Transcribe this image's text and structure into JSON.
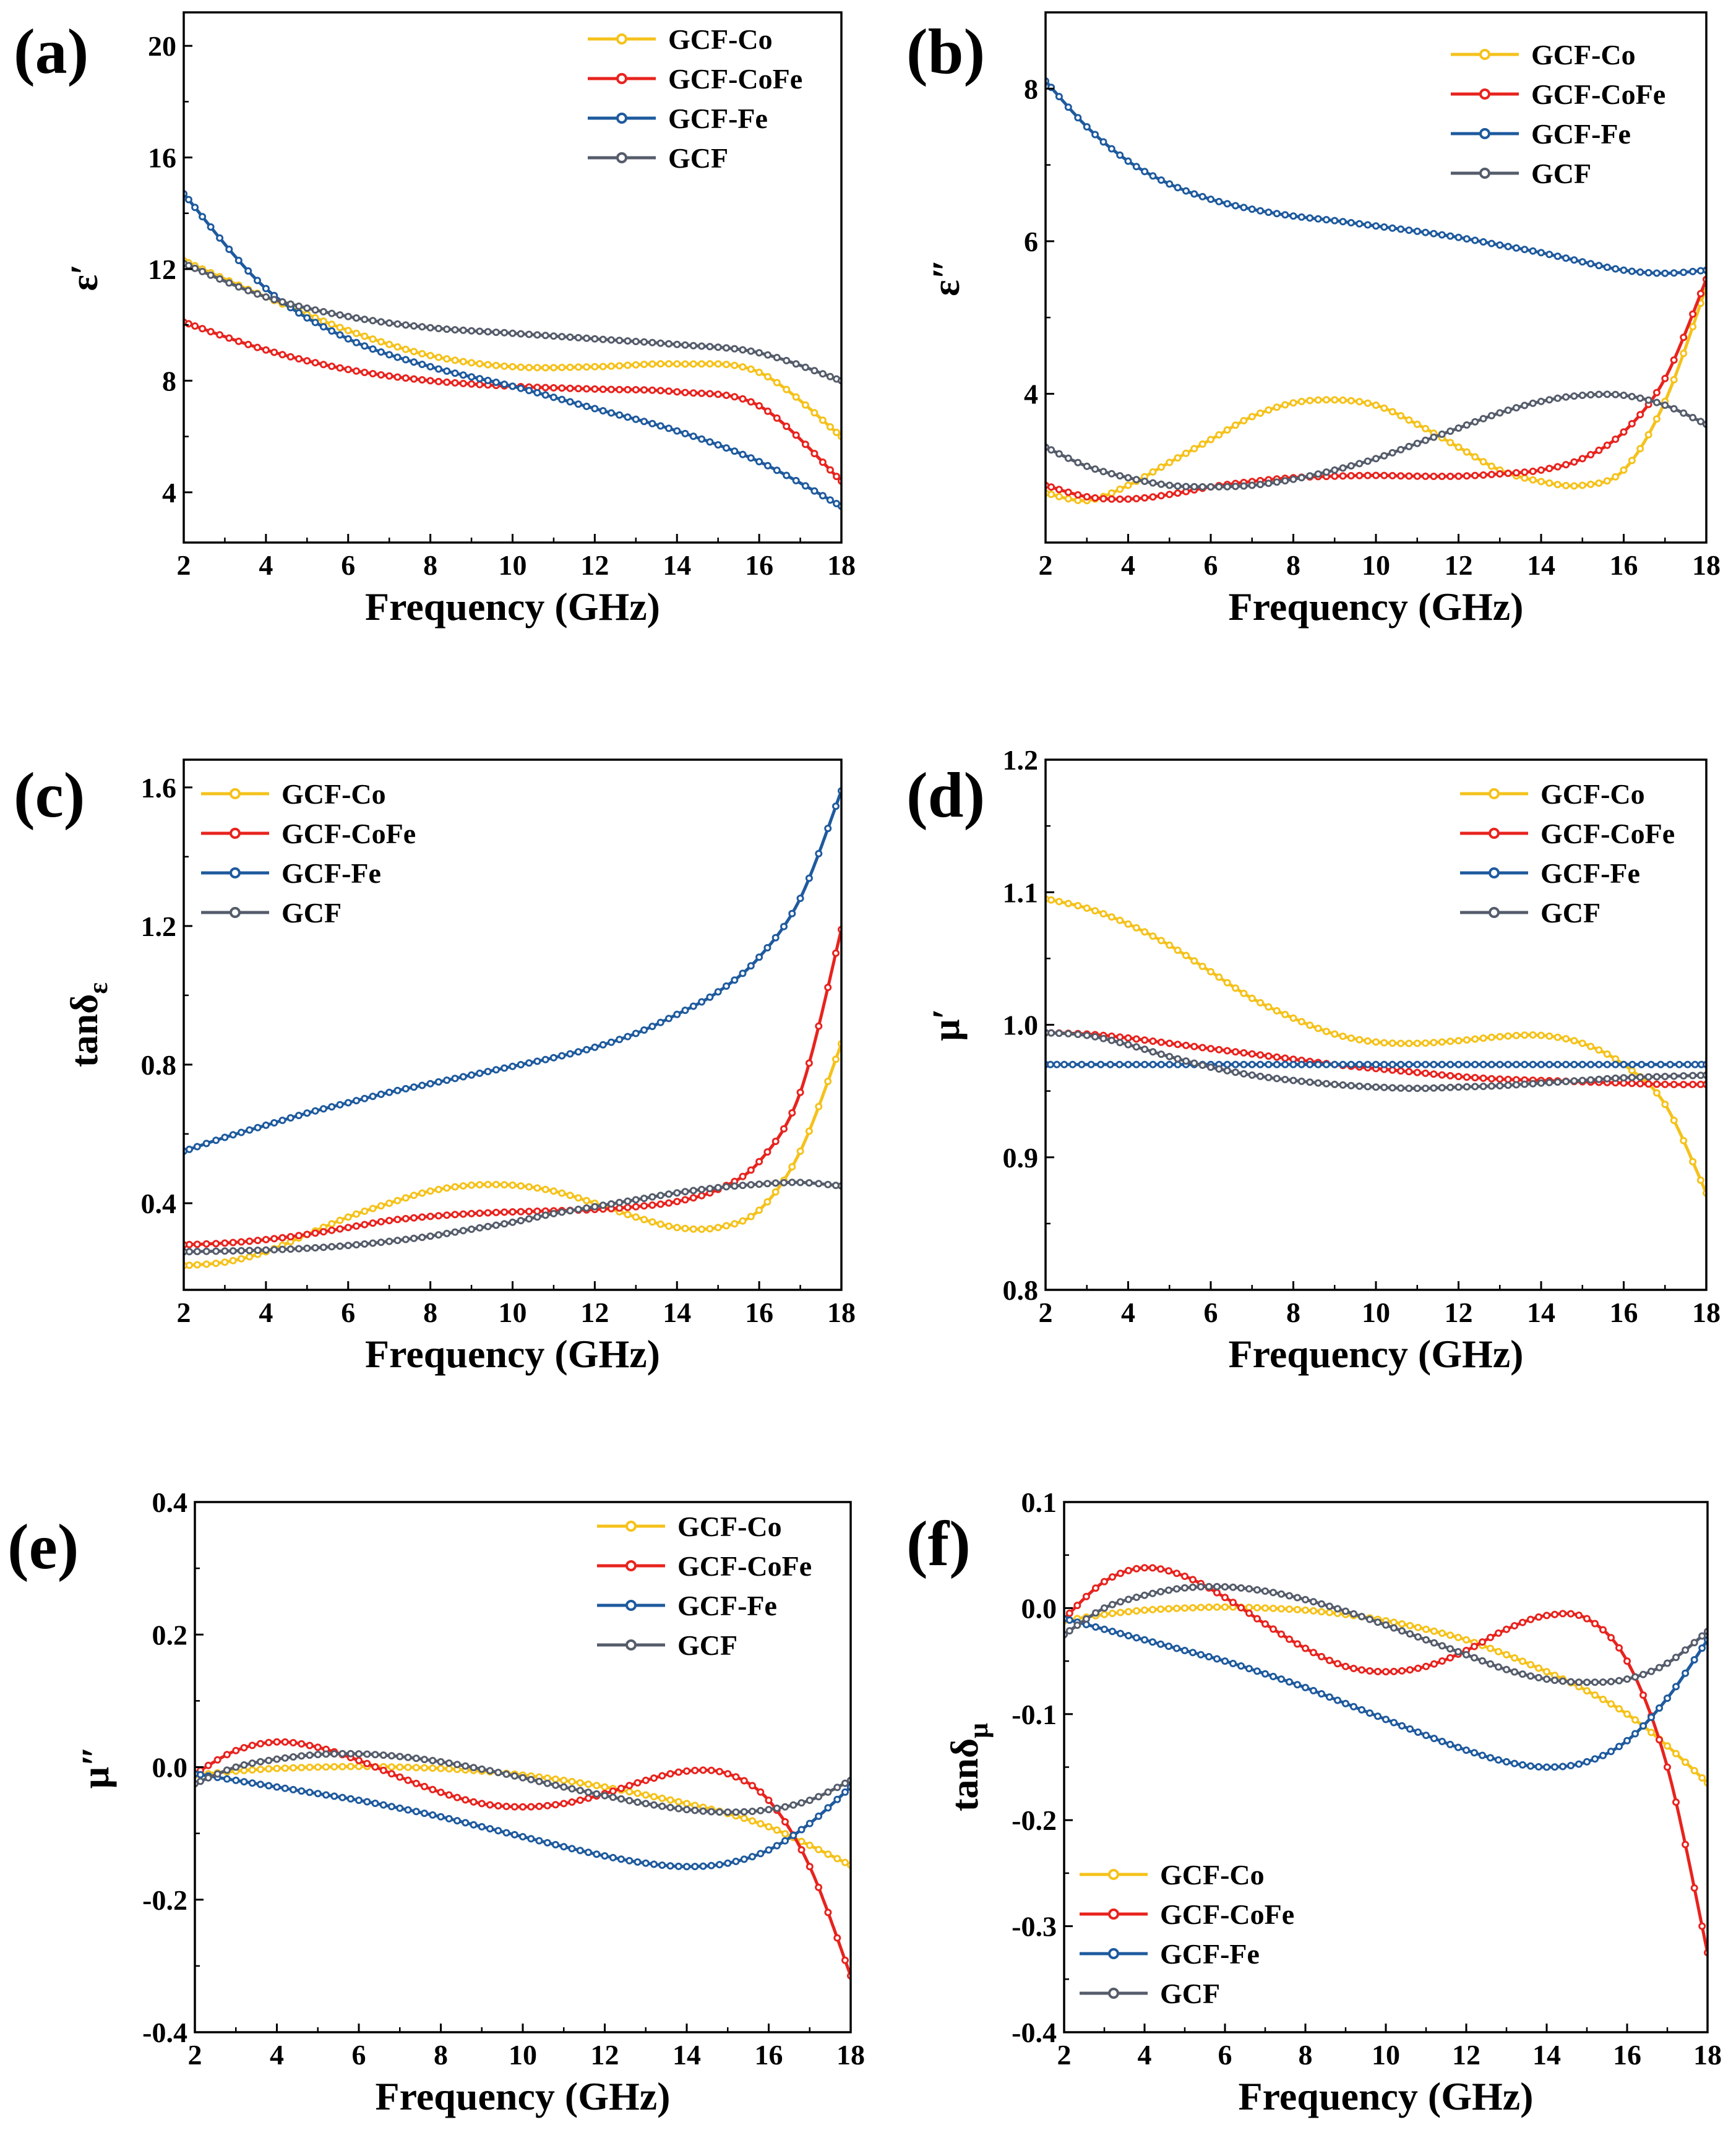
{
  "colors": {
    "GCF-Co": "#F5C21B",
    "GCF-CoFe": "#E8231E",
    "GCF-Fe": "#1E5A9E",
    "GCF": "#555C6B"
  },
  "chart_data": [
    {
      "panel": "(a)",
      "type": "line",
      "ylabel_main": "ε",
      "ylabel_sub": "",
      "ylabel_prime": "′",
      "xlabel": "Frequency (GHz)",
      "xlim": [
        2,
        18
      ],
      "ylim": [
        2.2,
        21.2
      ],
      "xticks": [
        2,
        4,
        6,
        8,
        10,
        12,
        14,
        16,
        18
      ],
      "yticks": [
        4,
        8,
        12,
        16,
        20
      ],
      "yticklabels": [
        "4",
        "8",
        "12",
        "16",
        "20"
      ],
      "legend_position": "top-right",
      "series": [
        {
          "name": "GCF-Co",
          "x": [
            2,
            4,
            6,
            8,
            10,
            12,
            14,
            16,
            18
          ],
          "y": [
            12.3,
            11.0,
            9.8,
            8.9,
            8.5,
            8.5,
            8.6,
            8.3,
            6.0
          ]
        },
        {
          "name": "GCF-CoFe",
          "x": [
            2,
            4,
            6,
            8,
            10,
            12,
            14,
            16,
            18
          ],
          "y": [
            10.1,
            9.1,
            8.4,
            8.0,
            7.8,
            7.7,
            7.6,
            7.1,
            4.4
          ]
        },
        {
          "name": "GCF-Fe",
          "x": [
            2,
            4,
            6,
            8,
            10,
            12,
            14,
            16,
            18
          ],
          "y": [
            14.7,
            11.3,
            9.5,
            8.5,
            7.8,
            7.0,
            6.2,
            5.1,
            3.5
          ]
        },
        {
          "name": "GCF",
          "x": [
            2,
            4,
            6,
            8,
            10,
            12,
            14,
            16,
            18
          ],
          "y": [
            12.2,
            11.0,
            10.3,
            9.9,
            9.7,
            9.5,
            9.3,
            9.0,
            8.0
          ]
        }
      ]
    },
    {
      "panel": "(b)",
      "type": "line",
      "ylabel_main": "ε",
      "ylabel_sub": "",
      "ylabel_prime": "″",
      "xlabel": "Frequency (GHz)",
      "xlim": [
        2,
        18
      ],
      "ylim": [
        2.05,
        9.0
      ],
      "xticks": [
        2,
        4,
        6,
        8,
        10,
        12,
        14,
        16,
        18
      ],
      "yticks": [
        4,
        6,
        8
      ],
      "yticklabels": [
        "4",
        "6",
        "8"
      ],
      "legend_position": "top-right",
      "series": [
        {
          "name": "GCF-Co",
          "x": [
            2,
            3,
            4,
            5,
            6,
            7,
            8,
            9,
            10,
            11,
            12,
            13,
            14,
            15,
            16,
            17,
            18
          ],
          "y": [
            2.7,
            2.6,
            2.8,
            3.1,
            3.4,
            3.7,
            3.88,
            3.92,
            3.85,
            3.6,
            3.3,
            3.0,
            2.85,
            2.8,
            3.0,
            3.9,
            5.4
          ]
        },
        {
          "name": "GCF-CoFe",
          "x": [
            2,
            3,
            4,
            5,
            6,
            7,
            8,
            9,
            10,
            11,
            12,
            13,
            14,
            15,
            16,
            17,
            18
          ],
          "y": [
            2.8,
            2.65,
            2.62,
            2.68,
            2.78,
            2.85,
            2.9,
            2.92,
            2.93,
            2.92,
            2.92,
            2.95,
            3.0,
            3.15,
            3.5,
            4.2,
            5.5
          ]
        },
        {
          "name": "GCF-Fe",
          "x": [
            2,
            3,
            4,
            5,
            6,
            7,
            8,
            9,
            10,
            11,
            12,
            13,
            14,
            15,
            16,
            17,
            18
          ],
          "y": [
            8.1,
            7.5,
            7.05,
            6.75,
            6.55,
            6.42,
            6.33,
            6.27,
            6.2,
            6.13,
            6.05,
            5.95,
            5.85,
            5.73,
            5.62,
            5.58,
            5.62
          ]
        },
        {
          "name": "GCF",
          "x": [
            2,
            3,
            4,
            5,
            6,
            7,
            8,
            9,
            10,
            11,
            12,
            13,
            14,
            15,
            16,
            17,
            18
          ],
          "y": [
            3.3,
            3.05,
            2.9,
            2.8,
            2.78,
            2.8,
            2.88,
            3.0,
            3.15,
            3.35,
            3.55,
            3.75,
            3.9,
            3.98,
            3.98,
            3.85,
            3.6
          ]
        }
      ]
    },
    {
      "panel": "(c)",
      "type": "line",
      "ylabel_main": "tanδ",
      "ylabel_sub": "ε",
      "ylabel_prime": "",
      "xlabel": "Frequency (GHz)",
      "xlim": [
        2,
        18
      ],
      "ylim": [
        0.15,
        1.68
      ],
      "xticks": [
        2,
        4,
        6,
        8,
        10,
        12,
        14,
        16,
        18
      ],
      "yticks": [
        0.4,
        0.8,
        1.2,
        1.6
      ],
      "yticklabels": [
        "0.4",
        "0.8",
        "1.2",
        "1.6"
      ],
      "legend_position": "top-left",
      "series": [
        {
          "name": "GCF-Co",
          "x": [
            2,
            3,
            4,
            5,
            6,
            7,
            8,
            9,
            10,
            11,
            12,
            13,
            14,
            15,
            16,
            17,
            18
          ],
          "y": [
            0.22,
            0.23,
            0.26,
            0.31,
            0.36,
            0.4,
            0.435,
            0.452,
            0.452,
            0.435,
            0.4,
            0.36,
            0.33,
            0.33,
            0.38,
            0.55,
            0.86
          ]
        },
        {
          "name": "GCF-CoFe",
          "x": [
            2,
            3,
            4,
            5,
            6,
            7,
            8,
            9,
            10,
            11,
            12,
            13,
            14,
            15,
            16,
            17,
            18
          ],
          "y": [
            0.28,
            0.285,
            0.295,
            0.31,
            0.33,
            0.35,
            0.362,
            0.37,
            0.375,
            0.378,
            0.382,
            0.39,
            0.405,
            0.44,
            0.52,
            0.72,
            1.19
          ]
        },
        {
          "name": "GCF-Fe",
          "x": [
            2,
            3,
            4,
            5,
            6,
            7,
            8,
            9,
            10,
            11,
            12,
            13,
            14,
            15,
            16,
            17,
            18
          ],
          "y": [
            0.55,
            0.59,
            0.625,
            0.66,
            0.69,
            0.72,
            0.745,
            0.77,
            0.795,
            0.82,
            0.85,
            0.89,
            0.945,
            1.01,
            1.11,
            1.28,
            1.59
          ]
        },
        {
          "name": "GCF",
          "x": [
            2,
            3,
            4,
            5,
            6,
            7,
            8,
            9,
            10,
            11,
            12,
            13,
            14,
            15,
            16,
            17,
            18
          ],
          "y": [
            0.26,
            0.262,
            0.265,
            0.27,
            0.278,
            0.29,
            0.305,
            0.325,
            0.345,
            0.37,
            0.39,
            0.41,
            0.43,
            0.445,
            0.455,
            0.46,
            0.45
          ]
        }
      ]
    },
    {
      "panel": "(d)",
      "type": "line",
      "ylabel_main": "μ",
      "ylabel_sub": "",
      "ylabel_prime": "′",
      "xlabel": "Frequency (GHz)",
      "xlim": [
        2,
        18
      ],
      "ylim": [
        0.8,
        1.2
      ],
      "xticks": [
        2,
        4,
        6,
        8,
        10,
        12,
        14,
        16,
        18
      ],
      "yticks": [
        0.8,
        0.9,
        1.0,
        1.1,
        1.2
      ],
      "yticklabels": [
        "0.8",
        "0.9",
        "1.0",
        "1.1",
        "1.2"
      ],
      "legend_position": "top-right",
      "series": [
        {
          "name": "GCF-Co",
          "x": [
            2,
            3,
            4,
            5,
            6,
            7,
            8,
            9,
            10,
            11,
            12,
            13,
            14,
            15,
            16,
            17,
            18
          ],
          "y": [
            1.095,
            1.088,
            1.076,
            1.06,
            1.04,
            1.02,
            1.005,
            0.993,
            0.987,
            0.986,
            0.988,
            0.991,
            0.992,
            0.986,
            0.97,
            0.94,
            0.873
          ]
        },
        {
          "name": "GCF-CoFe",
          "x": [
            2,
            3,
            4,
            5,
            6,
            7,
            8,
            9,
            10,
            11,
            12,
            13,
            14,
            15,
            16,
            17,
            18
          ],
          "y": [
            0.994,
            0.993,
            0.99,
            0.986,
            0.982,
            0.978,
            0.974,
            0.97,
            0.967,
            0.964,
            0.961,
            0.959,
            0.958,
            0.957,
            0.956,
            0.955,
            0.955
          ]
        },
        {
          "name": "GCF-Fe",
          "x": [
            2,
            4,
            6,
            8,
            10,
            12,
            14,
            16,
            18
          ],
          "y": [
            0.97,
            0.97,
            0.97,
            0.97,
            0.97,
            0.97,
            0.97,
            0.97,
            0.97
          ]
        },
        {
          "name": "GCF",
          "x": [
            2,
            3,
            4,
            5,
            6,
            7,
            8,
            9,
            10,
            11,
            12,
            13,
            14,
            15,
            16,
            17,
            18
          ],
          "y": [
            0.994,
            0.992,
            0.985,
            0.976,
            0.968,
            0.962,
            0.958,
            0.955,
            0.953,
            0.952,
            0.953,
            0.954,
            0.956,
            0.958,
            0.96,
            0.961,
            0.962
          ]
        }
      ]
    },
    {
      "panel": "(e)",
      "type": "line",
      "ylabel_main": "μ",
      "ylabel_sub": "",
      "ylabel_prime": "″",
      "xlabel": "Frequency (GHz)",
      "xlim": [
        2,
        18
      ],
      "ylim": [
        -0.4,
        0.4
      ],
      "xticks": [
        2,
        4,
        6,
        8,
        10,
        12,
        14,
        16,
        18
      ],
      "yticks": [
        -0.4,
        -0.2,
        0.0,
        0.2,
        0.4
      ],
      "yticklabels": [
        "-0.4",
        "-0.2",
        "0.0",
        "0.2",
        "0.4"
      ],
      "legend_position": "top-right",
      "series": [
        {
          "name": "GCF-Co",
          "x": [
            2,
            3,
            4,
            5,
            6,
            7,
            8,
            9,
            10,
            11,
            12,
            13,
            14,
            15,
            16,
            17,
            18
          ],
          "y": [
            -0.012,
            -0.006,
            -0.002,
            0.0,
            0.001,
            0.0,
            -0.002,
            -0.006,
            -0.012,
            -0.02,
            -0.03,
            -0.042,
            -0.055,
            -0.07,
            -0.09,
            -0.118,
            -0.148
          ]
        },
        {
          "name": "GCF-CoFe",
          "x": [
            2,
            3,
            4,
            5,
            6,
            7,
            8,
            9,
            10,
            11,
            12,
            13,
            14,
            15,
            16,
            17,
            18
          ],
          "y": [
            -0.01,
            0.025,
            0.038,
            0.03,
            0.01,
            -0.015,
            -0.038,
            -0.055,
            -0.06,
            -0.055,
            -0.04,
            -0.02,
            -0.006,
            -0.01,
            -0.05,
            -0.15,
            -0.315
          ]
        },
        {
          "name": "GCF-Fe",
          "x": [
            2,
            3,
            4,
            5,
            6,
            7,
            8,
            9,
            10,
            11,
            12,
            13,
            14,
            15,
            16,
            17,
            18
          ],
          "y": [
            -0.01,
            -0.02,
            -0.03,
            -0.04,
            -0.05,
            -0.062,
            -0.075,
            -0.09,
            -0.105,
            -0.12,
            -0.134,
            -0.145,
            -0.15,
            -0.145,
            -0.125,
            -0.085,
            -0.03
          ]
        },
        {
          "name": "GCF",
          "x": [
            2,
            3,
            4,
            5,
            6,
            7,
            8,
            9,
            10,
            11,
            12,
            13,
            14,
            15,
            16,
            17,
            18
          ],
          "y": [
            -0.025,
            0.0,
            0.012,
            0.019,
            0.02,
            0.016,
            0.008,
            -0.003,
            -0.016,
            -0.03,
            -0.043,
            -0.055,
            -0.064,
            -0.068,
            -0.064,
            -0.05,
            -0.02
          ]
        }
      ]
    },
    {
      "panel": "(f)",
      "type": "line",
      "ylabel_main": "tanδ",
      "ylabel_sub": "μ",
      "ylabel_prime": "",
      "xlabel": "Frequency (GHz)",
      "xlim": [
        2,
        18
      ],
      "ylim": [
        -0.4,
        0.1
      ],
      "xticks": [
        2,
        4,
        6,
        8,
        10,
        12,
        14,
        16,
        18
      ],
      "yticks": [
        -0.4,
        -0.3,
        -0.2,
        -0.1,
        0.0,
        0.1
      ],
      "yticklabels": [
        "-0.4",
        "-0.3",
        "-0.2",
        "-0.1",
        "0.0",
        "0.1"
      ],
      "legend_position": "bottom-left",
      "series": [
        {
          "name": "GCF-Co",
          "x": [
            2,
            3,
            4,
            5,
            6,
            7,
            8,
            9,
            10,
            11,
            12,
            13,
            14,
            15,
            16,
            17,
            18
          ],
          "y": [
            -0.012,
            -0.006,
            -0.002,
            0.0,
            0.001,
            0.0,
            -0.002,
            -0.006,
            -0.012,
            -0.02,
            -0.03,
            -0.044,
            -0.06,
            -0.078,
            -0.1,
            -0.13,
            -0.165
          ]
        },
        {
          "name": "GCF-CoFe",
          "x": [
            2,
            3,
            4,
            5,
            6,
            7,
            8,
            9,
            10,
            11,
            12,
            13,
            14,
            15,
            16,
            17,
            18
          ],
          "y": [
            -0.01,
            0.025,
            0.038,
            0.03,
            0.01,
            -0.015,
            -0.038,
            -0.055,
            -0.06,
            -0.055,
            -0.04,
            -0.02,
            -0.007,
            -0.01,
            -0.05,
            -0.15,
            -0.325
          ]
        },
        {
          "name": "GCF-Fe",
          "x": [
            2,
            3,
            4,
            5,
            6,
            7,
            8,
            9,
            10,
            11,
            12,
            13,
            14,
            15,
            16,
            17,
            18
          ],
          "y": [
            -0.01,
            -0.02,
            -0.03,
            -0.04,
            -0.05,
            -0.062,
            -0.075,
            -0.09,
            -0.105,
            -0.12,
            -0.134,
            -0.145,
            -0.15,
            -0.145,
            -0.125,
            -0.085,
            -0.03
          ]
        },
        {
          "name": "GCF",
          "x": [
            2,
            3,
            4,
            5,
            6,
            7,
            8,
            9,
            10,
            11,
            12,
            13,
            14,
            15,
            16,
            17,
            18
          ],
          "y": [
            -0.025,
            0.0,
            0.012,
            0.019,
            0.02,
            0.016,
            0.008,
            -0.003,
            -0.016,
            -0.03,
            -0.044,
            -0.058,
            -0.067,
            -0.07,
            -0.067,
            -0.052,
            -0.022
          ]
        }
      ]
    }
  ]
}
